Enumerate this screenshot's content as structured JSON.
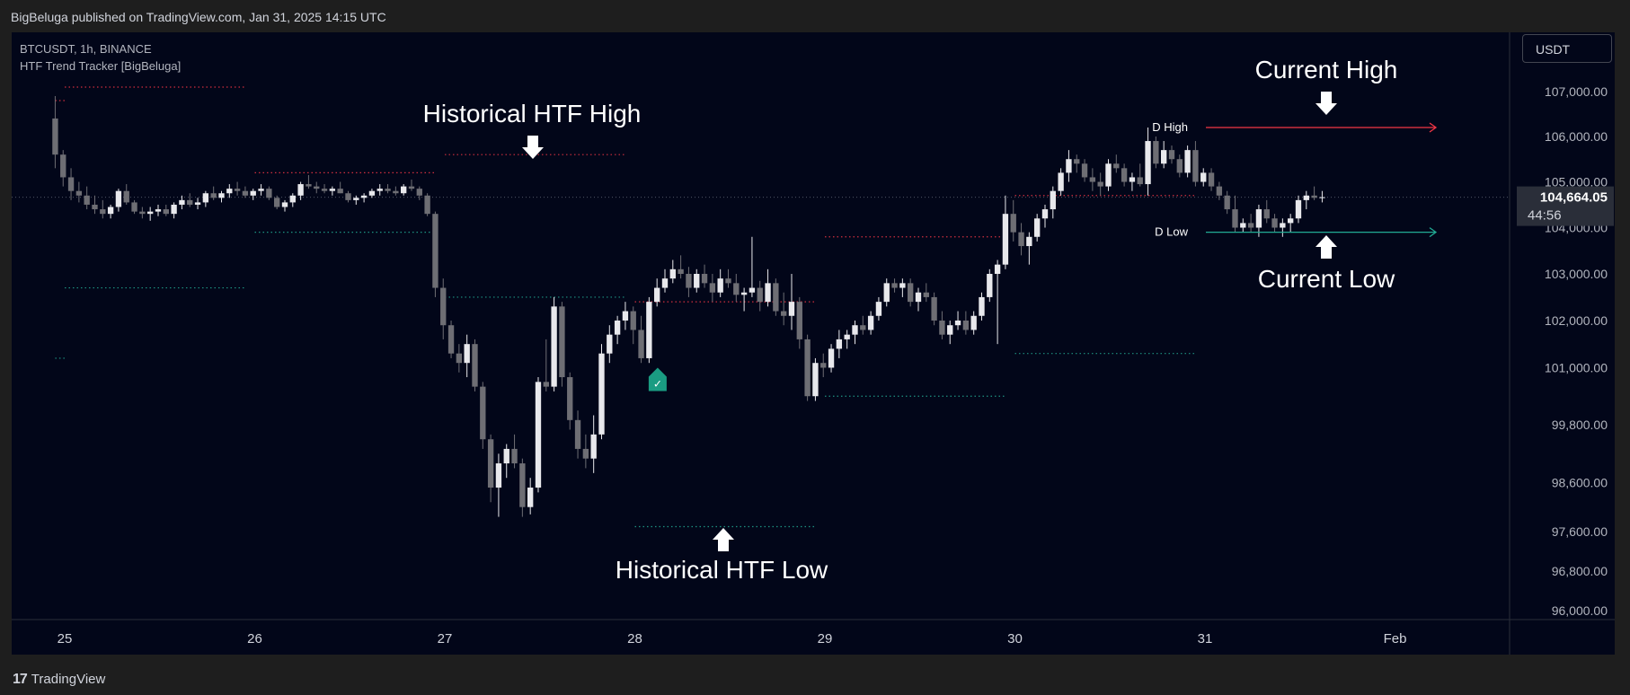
{
  "header": {
    "published_text": "BigBeluga published on TradingView.com, Jan 31, 2025 14:15 UTC"
  },
  "legend": {
    "symbol": "BTCUSDT, 1h, BINANCE",
    "indicator": "HTF Trend Tracker [BigBeluga]"
  },
  "currency_button": {
    "label": "USDT"
  },
  "footer": {
    "logo_text": "TradingView",
    "logo_icon": "tradingview-logo-icon"
  },
  "colors": {
    "background": "#020619",
    "bull_candle": "#e8e8ec",
    "bear_candle": "#6e6e74",
    "high_line": "#f23645",
    "low_line": "#22ab94",
    "signal": "#1a9c82"
  },
  "chart_data": {
    "type": "candlestick",
    "symbol": "BTCUSDT",
    "interval": "1h",
    "exchange": "BINANCE",
    "x_tick_labels": [
      "25",
      "26",
      "27",
      "28",
      "29",
      "30",
      "31",
      "Feb"
    ],
    "y_tick_labels": [
      "107,000.00",
      "106,000.00",
      "105,000.00",
      "104,000.00",
      "103,000.00",
      "102,000.00",
      "101,000.00",
      "99,800.00",
      "98,600.00",
      "97,600.00",
      "96,800.00",
      "96,000.00"
    ],
    "y_ticks": [
      107000,
      106000,
      105000,
      104000,
      103000,
      102000,
      101000,
      99800,
      98600,
      97600,
      96800,
      96000
    ],
    "scale": "log",
    "ylim": [
      96000,
      108000
    ],
    "last_price": {
      "label": "104,664.05",
      "value": 104664.05,
      "countdown": "44:56"
    },
    "daily_levels": [
      {
        "label": "D High",
        "value": 106200,
        "kind": "high"
      },
      {
        "label": "D Low",
        "value": 103900,
        "kind": "low"
      }
    ],
    "annotations": [
      {
        "text": "Current High",
        "arrow": "down"
      },
      {
        "text": "Current Low",
        "arrow": "up"
      },
      {
        "text": "Historical HTF High",
        "arrow": "down"
      },
      {
        "text": "Historical HTF Low",
        "arrow": "up"
      }
    ],
    "htf_levels": [
      {
        "kind": "high",
        "start_day": 24.95,
        "end_day": 25.0,
        "value": 106800
      },
      {
        "kind": "high",
        "start_day": 25.0,
        "end_day": 25.95,
        "value": 107100
      },
      {
        "kind": "high",
        "start_day": 26.0,
        "end_day": 26.95,
        "value": 105200
      },
      {
        "kind": "high",
        "start_day": 27.0,
        "end_day": 27.95,
        "value": 105600
      },
      {
        "kind": "high",
        "start_day": 28.0,
        "end_day": 28.95,
        "value": 102400
      },
      {
        "kind": "high",
        "start_day": 29.0,
        "end_day": 29.95,
        "value": 103800
      },
      {
        "kind": "high",
        "start_day": 30.0,
        "end_day": 30.95,
        "value": 104700
      },
      {
        "kind": "low",
        "start_day": 24.95,
        "end_day": 25.0,
        "value": 101200
      },
      {
        "kind": "low",
        "start_day": 25.0,
        "end_day": 25.95,
        "value": 102700
      },
      {
        "kind": "low",
        "start_day": 26.0,
        "end_day": 26.95,
        "value": 103900
      },
      {
        "kind": "low",
        "start_day": 27.0,
        "end_day": 27.95,
        "value": 102500
      },
      {
        "kind": "low",
        "start_day": 28.0,
        "end_day": 28.95,
        "value": 97700
      },
      {
        "kind": "low",
        "start_day": 29.0,
        "end_day": 29.95,
        "value": 100400
      },
      {
        "kind": "low",
        "start_day": 30.0,
        "end_day": 30.95,
        "value": 101300
      }
    ],
    "signals": [
      {
        "day": 28.12,
        "price": 101000,
        "type": "bullish",
        "label": "✓"
      }
    ],
    "candles_start_day": 24.95,
    "candle_interval_hours": 1,
    "candles": [
      [
        106400,
        106900,
        105300,
        105600
      ],
      [
        105600,
        105700,
        104900,
        105100
      ],
      [
        105100,
        105300,
        104600,
        104800
      ],
      [
        104800,
        105000,
        104550,
        104700
      ],
      [
        104700,
        104900,
        104400,
        104500
      ],
      [
        104500,
        104700,
        104300,
        104400
      ],
      [
        104400,
        104600,
        104200,
        104300
      ],
      [
        104300,
        104500,
        104200,
        104450
      ],
      [
        104450,
        104850,
        104350,
        104800
      ],
      [
        104800,
        104950,
        104500,
        104550
      ],
      [
        104550,
        104600,
        104300,
        104350
      ],
      [
        104350,
        104450,
        104200,
        104300
      ],
      [
        104300,
        104450,
        104150,
        104350
      ],
      [
        104350,
        104500,
        104250,
        104400
      ],
      [
        104400,
        104500,
        104250,
        104300
      ],
      [
        104300,
        104550,
        104200,
        104500
      ],
      [
        104500,
        104700,
        104400,
        104600
      ],
      [
        104600,
        104750,
        104450,
        104500
      ],
      [
        104500,
        104650,
        104400,
        104550
      ],
      [
        104550,
        104800,
        104450,
        104750
      ],
      [
        104750,
        104900,
        104600,
        104650
      ],
      [
        104650,
        104800,
        104550,
        104750
      ],
      [
        104750,
        104950,
        104650,
        104850
      ],
      [
        104850,
        105000,
        104700,
        104800
      ],
      [
        104800,
        104900,
        104650,
        104700
      ],
      [
        104700,
        104850,
        104600,
        104800
      ],
      [
        104800,
        104950,
        104700,
        104850
      ],
      [
        104850,
        104900,
        104600,
        104650
      ],
      [
        104650,
        104700,
        104400,
        104450
      ],
      [
        104450,
        104600,
        104350,
        104550
      ],
      [
        104550,
        104750,
        104450,
        104700
      ],
      [
        104700,
        105000,
        104600,
        104950
      ],
      [
        104950,
        105150,
        104850,
        104900
      ],
      [
        104900,
        105000,
        104750,
        104850
      ],
      [
        104850,
        104950,
        104750,
        104800
      ],
      [
        104800,
        104900,
        104700,
        104850
      ],
      [
        104850,
        105000,
        104750,
        104750
      ],
      [
        104750,
        104800,
        104550,
        104600
      ],
      [
        104600,
        104700,
        104500,
        104650
      ],
      [
        104650,
        104750,
        104550,
        104700
      ],
      [
        104700,
        104850,
        104650,
        104800
      ],
      [
        104800,
        104950,
        104700,
        104850
      ],
      [
        104850,
        104950,
        104750,
        104800
      ],
      [
        104800,
        104900,
        104700,
        104750
      ],
      [
        104750,
        104950,
        104700,
        104900
      ],
      [
        104900,
        105050,
        104800,
        104850
      ],
      [
        104850,
        104900,
        104600,
        104700
      ],
      [
        104700,
        104750,
        104250,
        104300
      ],
      [
        104300,
        104350,
        102500,
        102700
      ],
      [
        102700,
        102900,
        101600,
        101900
      ],
      [
        101900,
        102000,
        101200,
        101300
      ],
      [
        101300,
        101500,
        100900,
        101100
      ],
      [
        101100,
        101700,
        100800,
        101500
      ],
      [
        101500,
        101600,
        100500,
        100600
      ],
      [
        100600,
        100700,
        99300,
        99500
      ],
      [
        99500,
        99600,
        98200,
        98500
      ],
      [
        98500,
        99200,
        97900,
        99000
      ],
      [
        99000,
        99400,
        98700,
        99300
      ],
      [
        99300,
        99600,
        98900,
        99000
      ],
      [
        99000,
        99100,
        97900,
        98100
      ],
      [
        98100,
        98700,
        97950,
        98500
      ],
      [
        98500,
        100800,
        98400,
        100700
      ],
      [
        100700,
        101600,
        100500,
        100600
      ],
      [
        100600,
        102500,
        100500,
        102300
      ],
      [
        102300,
        102400,
        100600,
        100800
      ],
      [
        100800,
        100900,
        99700,
        99900
      ],
      [
        99900,
        100100,
        99100,
        99300
      ],
      [
        99300,
        99600,
        98900,
        99100
      ],
      [
        99100,
        100000,
        98800,
        99600
      ],
      [
        99600,
        101500,
        99500,
        101300
      ],
      [
        101300,
        101900,
        101100,
        101700
      ],
      [
        101700,
        102100,
        101500,
        102000
      ],
      [
        102000,
        102400,
        101800,
        102200
      ],
      [
        102200,
        102300,
        101500,
        101800
      ],
      [
        101800,
        102100,
        101100,
        101200
      ],
      [
        101200,
        102500,
        101100,
        102400
      ],
      [
        102400,
        102900,
        102300,
        102700
      ],
      [
        102700,
        103100,
        102600,
        102900
      ],
      [
        102900,
        103300,
        102800,
        103100
      ],
      [
        103100,
        103400,
        102900,
        103000
      ],
      [
        103000,
        103150,
        102500,
        102700
      ],
      [
        102700,
        103100,
        102600,
        103000
      ],
      [
        103000,
        103200,
        102700,
        102800
      ],
      [
        102800,
        103000,
        102400,
        102600
      ],
      [
        102600,
        103100,
        102500,
        102900
      ],
      [
        102900,
        103100,
        102700,
        102800
      ],
      [
        102800,
        103000,
        102400,
        102550
      ],
      [
        102550,
        102700,
        102200,
        102600
      ],
      [
        102600,
        103800,
        102500,
        102700
      ],
      [
        102700,
        102850,
        102200,
        102400
      ],
      [
        102400,
        103100,
        102300,
        102800
      ],
      [
        102800,
        102900,
        102100,
        102200
      ],
      [
        102200,
        102600,
        101900,
        102100
      ],
      [
        102100,
        103000,
        101800,
        102400
      ],
      [
        102400,
        102500,
        101400,
        101600
      ],
      [
        101600,
        101700,
        100300,
        100400
      ],
      [
        100400,
        101200,
        100300,
        101100
      ],
      [
        101100,
        101300,
        100800,
        101000
      ],
      [
        101000,
        101500,
        100900,
        101400
      ],
      [
        101400,
        101800,
        101200,
        101600
      ],
      [
        101600,
        101800,
        101400,
        101700
      ],
      [
        101700,
        102000,
        101500,
        101900
      ],
      [
        101900,
        102100,
        101700,
        101800
      ],
      [
        101800,
        102200,
        101700,
        102100
      ],
      [
        102100,
        102500,
        102000,
        102400
      ],
      [
        102400,
        102900,
        102300,
        102800
      ],
      [
        102800,
        102900,
        102600,
        102700
      ],
      [
        102700,
        102900,
        102500,
        102800
      ],
      [
        102800,
        102900,
        102300,
        102400
      ],
      [
        102400,
        102700,
        102200,
        102600
      ],
      [
        102600,
        102800,
        102400,
        102500
      ],
      [
        102500,
        102600,
        101900,
        102000
      ],
      [
        102000,
        102200,
        101600,
        101700
      ],
      [
        101700,
        102000,
        101500,
        101900
      ],
      [
        101900,
        102200,
        101800,
        102000
      ],
      [
        102000,
        102200,
        101700,
        101800
      ],
      [
        101800,
        102200,
        101700,
        102100
      ],
      [
        102100,
        102600,
        102000,
        102500
      ],
      [
        102500,
        103100,
        102400,
        103000
      ],
      [
        103000,
        103300,
        101500,
        103200
      ],
      [
        103200,
        104700,
        103100,
        104300
      ],
      [
        104300,
        104600,
        103700,
        103900
      ],
      [
        103900,
        104100,
        103400,
        103600
      ],
      [
        103600,
        103900,
        103200,
        103800
      ],
      [
        103800,
        104300,
        103700,
        104200
      ],
      [
        104200,
        104500,
        104000,
        104400
      ],
      [
        104400,
        104900,
        104200,
        104800
      ],
      [
        104800,
        105300,
        104700,
        105200
      ],
      [
        105200,
        105700,
        105000,
        105500
      ],
      [
        105500,
        105600,
        105200,
        105400
      ],
      [
        105400,
        105500,
        105000,
        105100
      ],
      [
        105100,
        105300,
        104800,
        105000
      ],
      [
        105000,
        105200,
        104700,
        104900
      ],
      [
        104900,
        105500,
        104800,
        105400
      ],
      [
        105400,
        105600,
        105200,
        105300
      ],
      [
        105300,
        105400,
        104900,
        105000
      ],
      [
        105000,
        105200,
        104800,
        105100
      ],
      [
        105100,
        105400,
        104900,
        104950
      ],
      [
        104950,
        106200,
        104700,
        105900
      ],
      [
        105900,
        106000,
        105300,
        105400
      ],
      [
        105400,
        105900,
        105300,
        105700
      ],
      [
        105700,
        105800,
        105400,
        105500
      ],
      [
        105500,
        105600,
        105100,
        105200
      ],
      [
        105200,
        105800,
        105100,
        105700
      ],
      [
        105700,
        105900,
        104900,
        105000
      ],
      [
        105000,
        105300,
        104900,
        105200
      ],
      [
        105200,
        105300,
        104800,
        104900
      ],
      [
        104900,
        105000,
        104600,
        104700
      ],
      [
        104700,
        104800,
        104300,
        104400
      ],
      [
        104400,
        104700,
        103900,
        104000
      ],
      [
        104000,
        104200,
        103900,
        104100
      ],
      [
        104100,
        104300,
        103900,
        104000
      ],
      [
        104000,
        104500,
        103800,
        104400
      ],
      [
        104400,
        104600,
        104100,
        104200
      ],
      [
        104200,
        104300,
        103900,
        104000
      ],
      [
        104000,
        104200,
        103800,
        104100
      ],
      [
        104100,
        104300,
        103900,
        104200
      ],
      [
        104200,
        104700,
        104100,
        104600
      ],
      [
        104600,
        104800,
        104400,
        104700
      ],
      [
        104700,
        104900,
        104600,
        104650
      ],
      [
        104650,
        104800,
        104550,
        104664
      ]
    ]
  }
}
